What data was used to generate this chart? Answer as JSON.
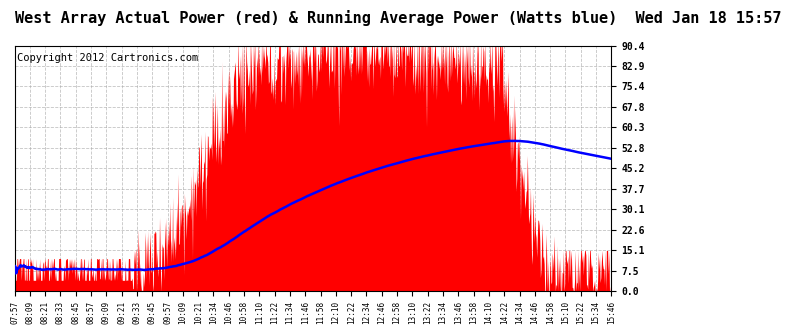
{
  "title": "West Array Actual Power (red) & Running Average Power (Watts blue)  Wed Jan 18 15:57",
  "copyright": "Copyright 2012 Cartronics.com",
  "yticks": [
    0.0,
    7.5,
    15.1,
    22.6,
    30.1,
    37.7,
    45.2,
    52.8,
    60.3,
    67.8,
    75.4,
    82.9,
    90.4
  ],
  "ymax": 90.4,
  "ymin": 0.0,
  "xtick_labels": [
    "07:57",
    "08:09",
    "08:21",
    "08:33",
    "08:45",
    "08:57",
    "09:09",
    "09:21",
    "09:33",
    "09:45",
    "09:57",
    "10:09",
    "10:21",
    "10:34",
    "10:46",
    "10:58",
    "11:10",
    "11:22",
    "11:34",
    "11:46",
    "11:58",
    "12:10",
    "12:22",
    "12:34",
    "12:46",
    "12:58",
    "13:10",
    "13:22",
    "13:34",
    "13:46",
    "13:58",
    "14:10",
    "14:22",
    "14:34",
    "14:46",
    "14:58",
    "15:10",
    "15:22",
    "15:34",
    "15:46"
  ],
  "bg_color": "#ffffff",
  "grid_color": "#aaaaaa",
  "red_color": "#ff0000",
  "blue_color": "#0000ff",
  "title_fontsize": 11,
  "copyright_fontsize": 7.5
}
